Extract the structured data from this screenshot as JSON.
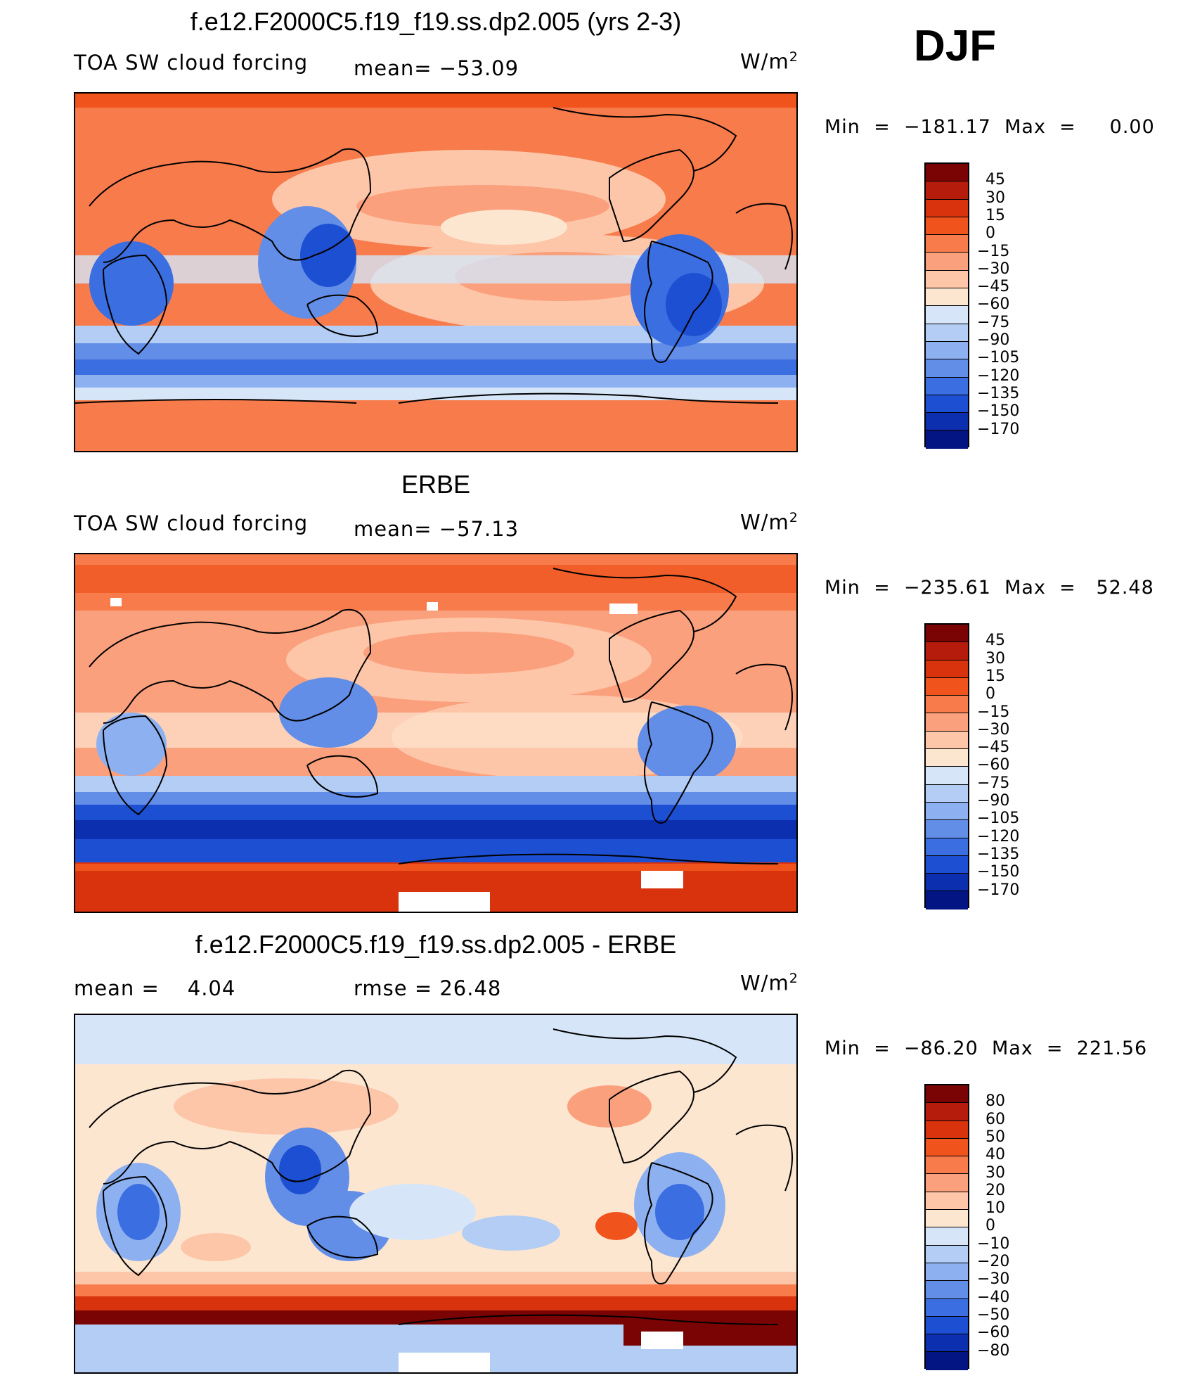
{
  "season": "DJF",
  "panels": [
    {
      "title": "f.e12.F2000C5.f19_f19.ss.dp2.005 (yrs 2-3)",
      "left_label": "TOA SW cloud forcing",
      "stat_label": "mean=",
      "stat_value": "−53.09",
      "units": "W/m",
      "units_exp": "2",
      "minmax": "Min  =  −181.17  Max  =     0.00"
    },
    {
      "title": "ERBE",
      "left_label": "TOA SW cloud forcing",
      "stat_label": "mean=",
      "stat_value": "−57.13",
      "units": "W/m",
      "units_exp": "2",
      "minmax": "Min  =  −235.61  Max  =   52.48"
    },
    {
      "title": "f.e12.F2000C5.f19_f19.ss.dp2.005 - ERBE",
      "left_label": "mean  =",
      "left_value": "4.04",
      "stat_label": "rmse  =",
      "stat_value": "26.48",
      "units": "W/m",
      "units_exp": "2",
      "minmax": "Min  =  −86.20  Max  =  221.56"
    }
  ],
  "chart_data": [
    {
      "type": "heatmap",
      "title": "f.e12.F2000C5.f19_f19.ss.dp2.005 (yrs 2-3)",
      "variable": "TOA SW cloud forcing",
      "mean": -53.09,
      "units": "W/m2",
      "min": -181.17,
      "max": 0.0,
      "levels": [
        "45",
        "30",
        "15",
        "0",
        "−15",
        "−30",
        "−45",
        "−60",
        "−75",
        "−90",
        "−105",
        "−120",
        "−135",
        "−150",
        "−170"
      ],
      "colors": [
        "#7a0403",
        "#b51c0c",
        "#d9330e",
        "#f0531c",
        "#f77b4b",
        "#fba07d",
        "#fdc6a8",
        "#fde6d0",
        "#d6e6f8",
        "#b3cdf5",
        "#8db1f0",
        "#628ee8",
        "#3b6ee0",
        "#1d4fd2",
        "#0c2fb0",
        "#031582"
      ]
    },
    {
      "type": "heatmap",
      "title": "ERBE",
      "variable": "TOA SW cloud forcing",
      "mean": -57.13,
      "units": "W/m2",
      "min": -235.61,
      "max": 52.48,
      "levels": [
        "45",
        "30",
        "15",
        "0",
        "−15",
        "−30",
        "−45",
        "−60",
        "−75",
        "−90",
        "−105",
        "−120",
        "−135",
        "−150",
        "−170"
      ],
      "colors": [
        "#7a0403",
        "#b51c0c",
        "#d9330e",
        "#f0531c",
        "#f77b4b",
        "#fba07d",
        "#fdc6a8",
        "#fde6d0",
        "#d6e6f8",
        "#b3cdf5",
        "#8db1f0",
        "#628ee8",
        "#3b6ee0",
        "#1d4fd2",
        "#0c2fb0",
        "#031582"
      ]
    },
    {
      "type": "heatmap",
      "title": "f.e12.F2000C5.f19_f19.ss.dp2.005 - ERBE",
      "mean": 4.04,
      "rmse": 26.48,
      "units": "W/m2",
      "min": -86.2,
      "max": 221.56,
      "levels": [
        "80",
        "60",
        "50",
        "40",
        "30",
        "20",
        "10",
        "0",
        "−10",
        "−20",
        "−30",
        "−40",
        "−50",
        "−60",
        "−80"
      ],
      "colors": [
        "#7a0403",
        "#b51c0c",
        "#d9330e",
        "#f0531c",
        "#f77b4b",
        "#fba07d",
        "#fdc6a8",
        "#fde6d0",
        "#d6e6f8",
        "#b3cdf5",
        "#8db1f0",
        "#628ee8",
        "#3b6ee0",
        "#1d4fd2",
        "#0c2fb0",
        "#031582"
      ]
    }
  ]
}
